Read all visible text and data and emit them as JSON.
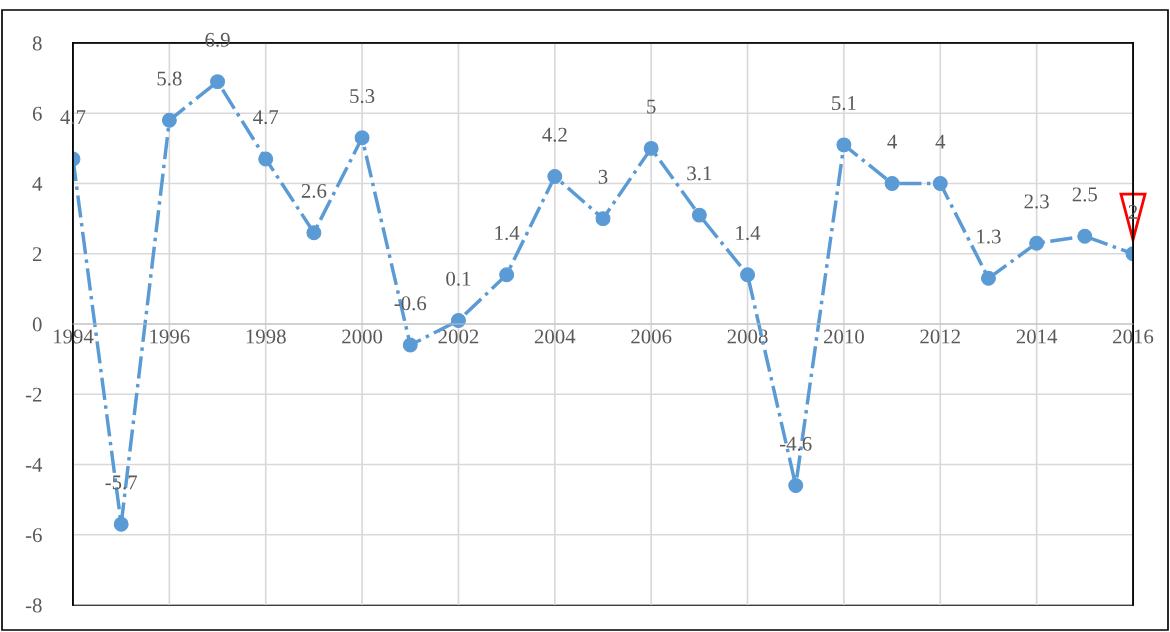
{
  "chart_data": {
    "type": "line",
    "x": [
      1994,
      1995,
      1996,
      1997,
      1998,
      1999,
      2000,
      2001,
      2002,
      2003,
      2004,
      2005,
      2006,
      2007,
      2008,
      2009,
      2010,
      2011,
      2012,
      2013,
      2014,
      2015,
      2016
    ],
    "series": [
      {
        "color": "#5b9bd5",
        "values": [
          4.7,
          -5.7,
          5.8,
          6.9,
          4.7,
          2.6,
          5.3,
          -0.6,
          0.1,
          1.4,
          4.2,
          3,
          5,
          3.1,
          1.4,
          -4.6,
          5.1,
          4,
          4,
          1.3,
          2.3,
          2.5,
          2
        ]
      }
    ],
    "data_labels": true,
    "marker": "circle",
    "line_style": "dashdot",
    "xlim": [
      1994,
      2016
    ],
    "xticks": [
      1994,
      1996,
      1998,
      2000,
      2002,
      2004,
      2006,
      2008,
      2010,
      2012,
      2014,
      2016
    ],
    "ylim": [
      -8,
      8
    ],
    "yticks": [
      -8,
      -6,
      -4,
      -2,
      0,
      2,
      4,
      6,
      8
    ],
    "grid": true
  }
}
